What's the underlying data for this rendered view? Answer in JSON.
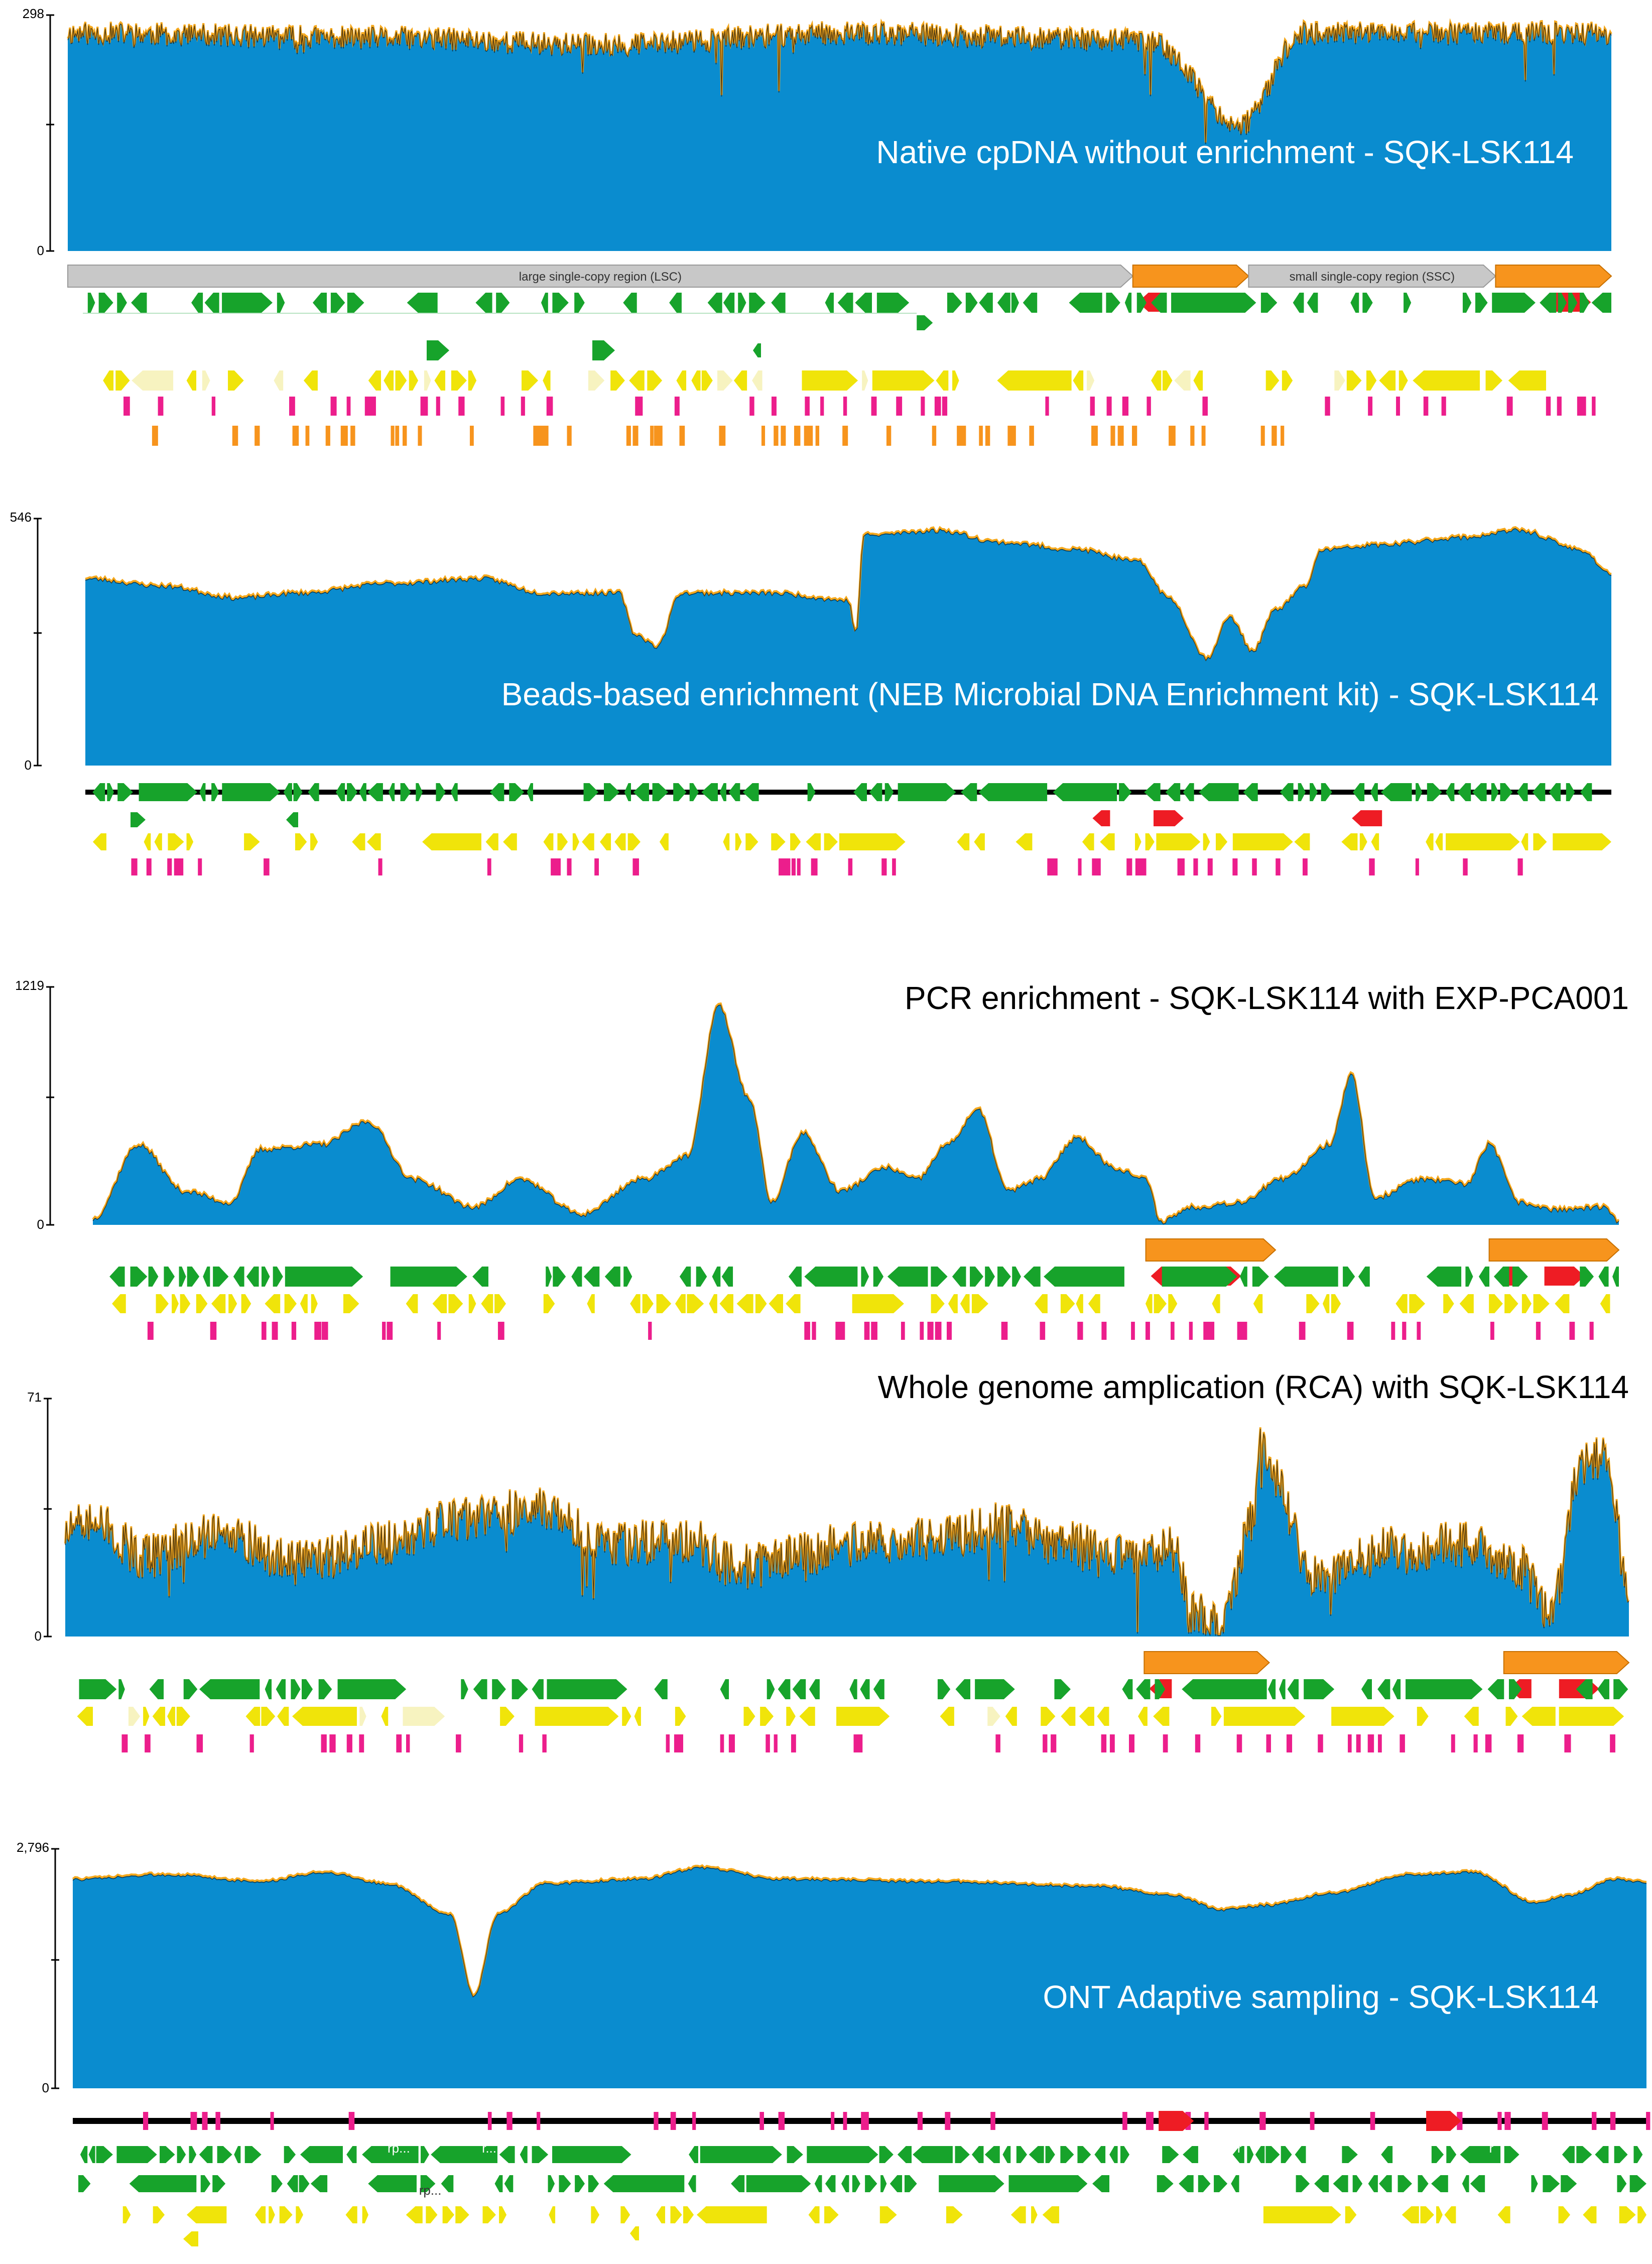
{
  "figure": {
    "colors": {
      "coverage_fill": "#0a8ccf",
      "coverage_line": "#f5a81c",
      "gene": "#17a32b",
      "cds": "#f0e40a",
      "cds_pale": "#f7f3c0",
      "trna": "#ec1e8c",
      "rrna": "#ee1c24",
      "ir": "#f7941d",
      "backbone": "#000000",
      "region_gray": "#c8c8c8"
    },
    "icons": {
      "gene_arrow": "arrow-right-icon",
      "gene_arrow_rev": "arrow-left-icon"
    }
  },
  "chart_data": [
    {
      "type": "area",
      "id": "native",
      "title": "Native cpDNA without enrichment - SQK-LSK114",
      "ylabel_max": "298",
      "ylabel_min": "0",
      "ylim": [
        0,
        298
      ],
      "xlim": [
        0,
        1
      ],
      "profile": "noisy",
      "base": 0.95,
      "noise": 0.05,
      "knots": [
        [
          0,
          0.95
        ],
        [
          0.2,
          0.93
        ],
        [
          0.35,
          0.9
        ],
        [
          0.5,
          0.95
        ],
        [
          0.7,
          0.92
        ],
        [
          0.76,
          0.55
        ],
        [
          0.8,
          0.95
        ],
        [
          1,
          0.95
        ]
      ],
      "regions": [
        {
          "label": "large single-copy region (LSC)",
          "from": 0.0,
          "to": 0.69,
          "color": "gray"
        },
        {
          "label": "",
          "from": 0.69,
          "to": 0.765,
          "color": "orange"
        },
        {
          "label": "small single-copy region (SSC)",
          "from": 0.765,
          "to": 0.925,
          "color": "gray"
        },
        {
          "label": "",
          "from": 0.925,
          "to": 1.0,
          "color": "orange"
        }
      ]
    },
    {
      "type": "area",
      "id": "beads",
      "title": "Beads-based enrichment (NEB Microbial DNA Enrichment kit) - SQK-LSK114",
      "ylabel_max": "546",
      "ylabel_min": "0",
      "ylim": [
        0,
        546
      ],
      "xlim": [
        0,
        1
      ],
      "profile": "smooth",
      "noise": 0.01,
      "knots": [
        [
          0,
          0.78
        ],
        [
          0.05,
          0.75
        ],
        [
          0.1,
          0.7
        ],
        [
          0.14,
          0.72
        ],
        [
          0.2,
          0.76
        ],
        [
          0.26,
          0.78
        ],
        [
          0.3,
          0.72
        ],
        [
          0.35,
          0.72
        ],
        [
          0.36,
          0.55
        ],
        [
          0.375,
          0.5
        ],
        [
          0.39,
          0.72
        ],
        [
          0.45,
          0.72
        ],
        [
          0.5,
          0.69
        ],
        [
          0.505,
          0.55
        ],
        [
          0.51,
          0.96
        ],
        [
          0.56,
          0.98
        ],
        [
          0.6,
          0.93
        ],
        [
          0.65,
          0.9
        ],
        [
          0.69,
          0.85
        ],
        [
          0.71,
          0.7
        ],
        [
          0.735,
          0.45
        ],
        [
          0.75,
          0.62
        ],
        [
          0.765,
          0.48
        ],
        [
          0.78,
          0.65
        ],
        [
          0.8,
          0.75
        ],
        [
          0.81,
          0.9
        ],
        [
          0.85,
          0.92
        ],
        [
          0.9,
          0.95
        ],
        [
          0.94,
          0.98
        ],
        [
          0.98,
          0.9
        ],
        [
          1.0,
          0.8
        ]
      ],
      "regions": []
    },
    {
      "type": "area",
      "id": "pcr",
      "title": "PCR enrichment - SQK-LSK114 with EXP-PCA001",
      "ylabel_max": "1219",
      "ylabel_min": "0",
      "ylim": [
        0,
        1219
      ],
      "xlim": [
        0,
        1
      ],
      "profile": "smooth",
      "noise": 0.012,
      "knots": [
        [
          0,
          0.03
        ],
        [
          0.03,
          0.35
        ],
        [
          0.06,
          0.15
        ],
        [
          0.09,
          0.1
        ],
        [
          0.11,
          0.33
        ],
        [
          0.15,
          0.35
        ],
        [
          0.18,
          0.45
        ],
        [
          0.21,
          0.2
        ],
        [
          0.25,
          0.08
        ],
        [
          0.28,
          0.2
        ],
        [
          0.32,
          0.05
        ],
        [
          0.36,
          0.2
        ],
        [
          0.39,
          0.3
        ],
        [
          0.41,
          0.95
        ],
        [
          0.43,
          0.55
        ],
        [
          0.445,
          0.1
        ],
        [
          0.465,
          0.4
        ],
        [
          0.49,
          0.15
        ],
        [
          0.52,
          0.25
        ],
        [
          0.54,
          0.2
        ],
        [
          0.56,
          0.35
        ],
        [
          0.58,
          0.5
        ],
        [
          0.6,
          0.15
        ],
        [
          0.62,
          0.2
        ],
        [
          0.645,
          0.38
        ],
        [
          0.67,
          0.25
        ],
        [
          0.69,
          0.2
        ],
        [
          0.7,
          0.02
        ],
        [
          0.72,
          0.08
        ],
        [
          0.75,
          0.1
        ],
        [
          0.78,
          0.2
        ],
        [
          0.81,
          0.35
        ],
        [
          0.825,
          0.65
        ],
        [
          0.84,
          0.12
        ],
        [
          0.87,
          0.2
        ],
        [
          0.9,
          0.18
        ],
        [
          0.915,
          0.35
        ],
        [
          0.935,
          0.1
        ],
        [
          0.96,
          0.07
        ],
        [
          0.99,
          0.08
        ],
        [
          1.0,
          0.02
        ]
      ],
      "regions": [
        {
          "label": "",
          "from": 0.69,
          "to": 0.775,
          "color": "orange"
        },
        {
          "label": "",
          "from": 0.915,
          "to": 1.0,
          "color": "orange"
        }
      ]
    },
    {
      "type": "area",
      "id": "rca",
      "title": "Whole genome amplication (RCA) with SQK-LSK114",
      "ylabel_max": "71",
      "ylabel_min": "0",
      "ylim": [
        0,
        71
      ],
      "xlim": [
        0,
        1
      ],
      "profile": "noisy",
      "noise": 0.1,
      "knots": [
        [
          0,
          0.45
        ],
        [
          0.02,
          0.5
        ],
        [
          0.05,
          0.35
        ],
        [
          0.1,
          0.45
        ],
        [
          0.15,
          0.32
        ],
        [
          0.2,
          0.4
        ],
        [
          0.25,
          0.5
        ],
        [
          0.3,
          0.55
        ],
        [
          0.35,
          0.4
        ],
        [
          0.4,
          0.42
        ],
        [
          0.43,
          0.3
        ],
        [
          0.47,
          0.35
        ],
        [
          0.5,
          0.4
        ],
        [
          0.55,
          0.42
        ],
        [
          0.6,
          0.48
        ],
        [
          0.64,
          0.4
        ],
        [
          0.68,
          0.35
        ],
        [
          0.71,
          0.38
        ],
        [
          0.72,
          0.1
        ],
        [
          0.74,
          0.05
        ],
        [
          0.76,
          0.5
        ],
        [
          0.765,
          0.9
        ],
        [
          0.77,
          0.7
        ],
        [
          0.8,
          0.25
        ],
        [
          0.85,
          0.38
        ],
        [
          0.9,
          0.4
        ],
        [
          0.93,
          0.3
        ],
        [
          0.95,
          0.1
        ],
        [
          0.97,
          0.75
        ],
        [
          0.985,
          0.8
        ],
        [
          1.0,
          0.2
        ]
      ],
      "regions": [
        {
          "label": "",
          "from": 0.69,
          "to": 0.77,
          "color": "orange"
        },
        {
          "label": "",
          "from": 0.92,
          "to": 1.0,
          "color": "orange"
        }
      ]
    },
    {
      "type": "area",
      "id": "adaptive",
      "title": "ONT Adaptive sampling - SQK-LSK114",
      "ylabel_max": "2,796",
      "ylabel_min": "0",
      "ylim": [
        0,
        2796
      ],
      "xlim": [
        0,
        1
      ],
      "profile": "smooth",
      "noise": 0.006,
      "knots": [
        [
          0,
          0.9
        ],
        [
          0.06,
          0.92
        ],
        [
          0.12,
          0.89
        ],
        [
          0.16,
          0.93
        ],
        [
          0.2,
          0.88
        ],
        [
          0.24,
          0.75
        ],
        [
          0.255,
          0.4
        ],
        [
          0.27,
          0.75
        ],
        [
          0.3,
          0.88
        ],
        [
          0.36,
          0.9
        ],
        [
          0.4,
          0.95
        ],
        [
          0.45,
          0.9
        ],
        [
          0.55,
          0.89
        ],
        [
          0.65,
          0.87
        ],
        [
          0.7,
          0.83
        ],
        [
          0.73,
          0.77
        ],
        [
          0.76,
          0.79
        ],
        [
          0.8,
          0.84
        ],
        [
          0.85,
          0.92
        ],
        [
          0.89,
          0.93
        ],
        [
          0.93,
          0.8
        ],
        [
          0.95,
          0.83
        ],
        [
          0.98,
          0.9
        ],
        [
          1,
          0.89
        ]
      ],
      "regions": [],
      "gene_labels": [
        "r",
        "r",
        "r...",
        "rp...",
        "r",
        "r",
        "rp..."
      ]
    }
  ]
}
